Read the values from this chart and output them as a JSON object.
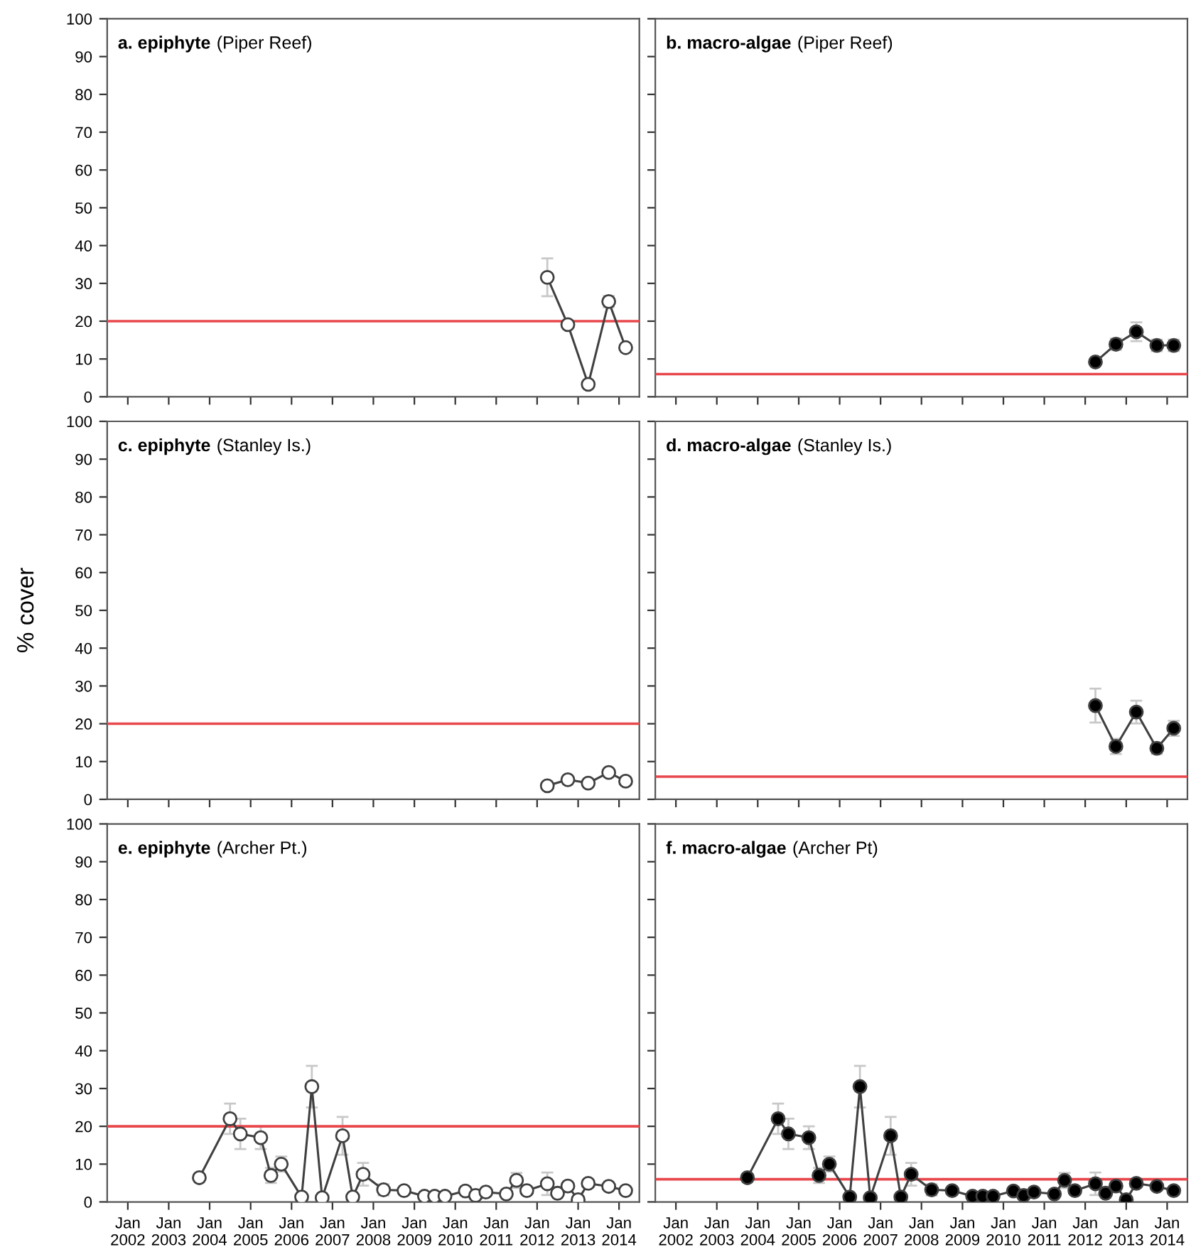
{
  "chart_data": [
    {
      "type": "line",
      "title": "a. epiphyte",
      "subtitle": "(Piper Reef)",
      "marker": "circle",
      "line_style": "solid",
      "grid": false,
      "tick_labels": "y",
      "series": [
        {
          "color": "#ffffff",
          "x": [
            "2012-04",
            "2012-10",
            "2013-04",
            "2013-10",
            "2014-03"
          ],
          "values": [
            31.6,
            19.1,
            3.3,
            25.2,
            13
          ],
          "errors": [
            5,
            null,
            null,
            1.5,
            null
          ]
        }
      ],
      "ref_lines": [
        {
          "axis": "y",
          "value": 20,
          "color": "#e8474c"
        }
      ],
      "xlim": [
        "2001-07",
        "2014-07"
      ],
      "ylim": [
        0,
        100
      ],
      "xticks": [
        {
          "value": "2002-01",
          "label": null
        },
        {
          "value": "2003-01",
          "label": null
        },
        {
          "value": "2004-01",
          "label": null
        },
        {
          "value": "2005-01",
          "label": null
        },
        {
          "value": "2006-01",
          "label": null
        },
        {
          "value": "2007-01",
          "label": null
        },
        {
          "value": "2008-01",
          "label": null
        },
        {
          "value": "2009-01",
          "label": null
        },
        {
          "value": "2010-01",
          "label": null
        },
        {
          "value": "2011-01",
          "label": null
        },
        {
          "value": "2012-01",
          "label": null
        },
        {
          "value": "2013-01",
          "label": null
        },
        {
          "value": "2014-01",
          "label": null
        }
      ],
      "yticks": [
        0,
        10,
        20,
        30,
        40,
        50,
        60,
        70,
        80,
        90,
        100
      ]
    },
    {
      "type": "line",
      "title": "b. macro-algae",
      "subtitle": "(Piper Reef)",
      "marker": "circle",
      "line_style": "solid",
      "grid": false,
      "tick_labels": false,
      "series": [
        {
          "color": "#000000",
          "x": [
            "2012-04",
            "2012-10",
            "2013-04",
            "2013-10",
            "2014-03"
          ],
          "values": [
            9.2,
            13.9,
            17.2,
            13.6,
            13.6
          ],
          "errors": [
            null,
            1.5,
            2.5,
            1.5,
            1.5
          ]
        }
      ],
      "ref_lines": [
        {
          "axis": "y",
          "value": 6,
          "color": "#e8474c"
        }
      ],
      "xlim": [
        "2001-07",
        "2014-07"
      ],
      "ylim": [
        0,
        100
      ],
      "xticks": [
        {
          "value": "2002-01",
          "label": null
        },
        {
          "value": "2003-01",
          "label": null
        },
        {
          "value": "2004-01",
          "label": null
        },
        {
          "value": "2005-01",
          "label": null
        },
        {
          "value": "2006-01",
          "label": null
        },
        {
          "value": "2007-01",
          "label": null
        },
        {
          "value": "2008-01",
          "label": null
        },
        {
          "value": "2009-01",
          "label": null
        },
        {
          "value": "2010-01",
          "label": null
        },
        {
          "value": "2011-01",
          "label": null
        },
        {
          "value": "2012-01",
          "label": null
        },
        {
          "value": "2013-01",
          "label": null
        },
        {
          "value": "2014-01",
          "label": null
        }
      ],
      "yticks": [
        {
          "value": 0,
          "label": null
        },
        {
          "value": 10,
          "label": null
        },
        {
          "value": 20,
          "label": null
        },
        {
          "value": 30,
          "label": null
        },
        {
          "value": 40,
          "label": null
        },
        {
          "value": 50,
          "label": null
        },
        {
          "value": 60,
          "label": null
        },
        {
          "value": 70,
          "label": null
        },
        {
          "value": 80,
          "label": null
        },
        {
          "value": 90,
          "label": null
        },
        {
          "value": 100,
          "label": null
        }
      ]
    },
    {
      "type": "line",
      "title": "c. epiphyte",
      "subtitle": "(Stanley Is.)",
      "ylabel": "% cover",
      "marker": "circle",
      "line_style": "solid",
      "grid": false,
      "tick_labels": "y",
      "series": [
        {
          "color": "#ffffff",
          "x": [
            "2012-04",
            "2012-10",
            "2013-04",
            "2013-10",
            "2014-03"
          ],
          "values": [
            3.6,
            5.2,
            4.3,
            7.1,
            4.8
          ]
        }
      ],
      "ref_lines": [
        {
          "axis": "y",
          "value": 20,
          "color": "#e8474c"
        }
      ],
      "xlim": [
        "2001-07",
        "2014-07"
      ],
      "ylim": [
        0,
        100
      ],
      "xticks": [
        {
          "value": "2002-01",
          "label": null
        },
        {
          "value": "2003-01",
          "label": null
        },
        {
          "value": "2004-01",
          "label": null
        },
        {
          "value": "2005-01",
          "label": null
        },
        {
          "value": "2006-01",
          "label": null
        },
        {
          "value": "2007-01",
          "label": null
        },
        {
          "value": "2008-01",
          "label": null
        },
        {
          "value": "2009-01",
          "label": null
        },
        {
          "value": "2010-01",
          "label": null
        },
        {
          "value": "2011-01",
          "label": null
        },
        {
          "value": "2012-01",
          "label": null
        },
        {
          "value": "2013-01",
          "label": null
        },
        {
          "value": "2014-01",
          "label": null
        }
      ],
      "yticks": [
        0,
        10,
        20,
        30,
        40,
        50,
        60,
        70,
        80,
        90,
        100
      ]
    },
    {
      "type": "line",
      "title": "d. macro-algae",
      "subtitle": "(Stanley Is.)",
      "marker": "circle",
      "line_style": "solid",
      "grid": false,
      "tick_labels": false,
      "series": [
        {
          "color": "#000000",
          "x": [
            "2012-04",
            "2012-10",
            "2013-04",
            "2013-10",
            "2014-03"
          ],
          "values": [
            24.8,
            14,
            23.1,
            13.5,
            18.8
          ],
          "errors": [
            4.5,
            2,
            3,
            1.5,
            2
          ]
        }
      ],
      "ref_lines": [
        {
          "axis": "y",
          "value": 6,
          "color": "#e8474c"
        }
      ],
      "xlim": [
        "2001-07",
        "2014-07"
      ],
      "ylim": [
        0,
        100
      ],
      "xticks": [
        {
          "value": "2002-01",
          "label": null
        },
        {
          "value": "2003-01",
          "label": null
        },
        {
          "value": "2004-01",
          "label": null
        },
        {
          "value": "2005-01",
          "label": null
        },
        {
          "value": "2006-01",
          "label": null
        },
        {
          "value": "2007-01",
          "label": null
        },
        {
          "value": "2008-01",
          "label": null
        },
        {
          "value": "2009-01",
          "label": null
        },
        {
          "value": "2010-01",
          "label": null
        },
        {
          "value": "2011-01",
          "label": null
        },
        {
          "value": "2012-01",
          "label": null
        },
        {
          "value": "2013-01",
          "label": null
        },
        {
          "value": "2014-01",
          "label": null
        }
      ],
      "yticks": [
        {
          "value": 0,
          "label": null
        },
        {
          "value": 10,
          "label": null
        },
        {
          "value": 20,
          "label": null
        },
        {
          "value": 30,
          "label": null
        },
        {
          "value": 40,
          "label": null
        },
        {
          "value": 50,
          "label": null
        },
        {
          "value": 60,
          "label": null
        },
        {
          "value": 70,
          "label": null
        },
        {
          "value": 80,
          "label": null
        },
        {
          "value": 90,
          "label": null
        },
        {
          "value": 100,
          "label": null
        }
      ]
    },
    {
      "type": "line",
      "title": "e. epiphyte",
      "subtitle": "(Archer Pt.)",
      "marker": "circle",
      "line_style": "solid",
      "grid": false,
      "series": [
        {
          "color": "#ffffff",
          "x": [
            "2003-10",
            "2004-07",
            "2004-10",
            "2005-04",
            "2005-07",
            "2005-10",
            "2006-04",
            "2006-07",
            "2006-10",
            "2007-04",
            "2007-07",
            "2007-10",
            "2008-04",
            "2008-10",
            "2009-04",
            "2009-07",
            "2009-10",
            "2010-04",
            "2010-07",
            "2010-10",
            "2011-04",
            "2011-07",
            "2011-10",
            "2012-04",
            "2012-07",
            "2012-10",
            "2013-01",
            "2013-04",
            "2013-10",
            "2014-03"
          ],
          "values": [
            6.4,
            22,
            18,
            17,
            7,
            10,
            1.3,
            30.5,
            1.1,
            17.5,
            1.3,
            7.3,
            3.2,
            3,
            1.5,
            1.5,
            1.5,
            2.9,
            1.7,
            2.6,
            2.1,
            5.7,
            3,
            4.8,
            2.3,
            4.2,
            0.6,
            4.9,
            4.1,
            3
          ],
          "errors": [
            1,
            4,
            4,
            3,
            2,
            2,
            null,
            5.5,
            null,
            5,
            null,
            3,
            1.5,
            null,
            null,
            null,
            null,
            1,
            null,
            null,
            null,
            2,
            null,
            3,
            null,
            null,
            null,
            null,
            null,
            null
          ]
        }
      ],
      "ref_lines": [
        {
          "axis": "y",
          "value": 20,
          "color": "#e8474c"
        }
      ],
      "xlim": [
        "2001-07",
        "2014-07"
      ],
      "ylim": [
        0,
        100
      ],
      "xticks": [
        {
          "value": "2002-01",
          "label": "Jan\n2002"
        },
        {
          "value": "2003-01",
          "label": "Jan\n2003"
        },
        {
          "value": "2004-01",
          "label": "Jan\n2004"
        },
        {
          "value": "2005-01",
          "label": "Jan\n2005"
        },
        {
          "value": "2006-01",
          "label": "Jan\n2006"
        },
        {
          "value": "2007-01",
          "label": "Jan\n2007"
        },
        {
          "value": "2008-01",
          "label": "Jan\n2008"
        },
        {
          "value": "2009-01",
          "label": "Jan\n2009"
        },
        {
          "value": "2010-01",
          "label": "Jan\n2010"
        },
        {
          "value": "2011-01",
          "label": "Jan\n2011"
        },
        {
          "value": "2012-01",
          "label": "Jan\n2012"
        },
        {
          "value": "2013-01",
          "label": "Jan\n2013"
        },
        {
          "value": "2014-01",
          "label": "Jan\n2014"
        }
      ],
      "yticks": [
        0,
        10,
        20,
        30,
        40,
        50,
        60,
        70,
        80,
        90,
        100
      ]
    },
    {
      "type": "line",
      "title": "f. macro-algae",
      "subtitle": "(Archer Pt)",
      "marker": "circle",
      "line_style": "solid",
      "grid": false,
      "tick_labels": "x",
      "series": [
        {
          "color": "#000000",
          "x": [
            "2003-10",
            "2004-07",
            "2004-10",
            "2005-04",
            "2005-07",
            "2005-10",
            "2006-04",
            "2006-07",
            "2006-10",
            "2007-04",
            "2007-07",
            "2007-10",
            "2008-04",
            "2008-10",
            "2009-04",
            "2009-07",
            "2009-10",
            "2010-04",
            "2010-07",
            "2010-10",
            "2011-04",
            "2011-07",
            "2011-10",
            "2012-04",
            "2012-07",
            "2012-10",
            "2013-01",
            "2013-04",
            "2013-10",
            "2014-03"
          ],
          "values": [
            6.4,
            22,
            18,
            17,
            7,
            10,
            1.3,
            30.5,
            1.1,
            17.5,
            1.3,
            7.3,
            3.2,
            3,
            1.5,
            1.5,
            1.5,
            2.9,
            1.7,
            2.6,
            2.1,
            5.7,
            3,
            4.8,
            2.3,
            4.2,
            0.6,
            4.9,
            4.1,
            3
          ],
          "errors": [
            1,
            4,
            4,
            3,
            2,
            2,
            null,
            5.5,
            null,
            5,
            null,
            3,
            1.5,
            null,
            null,
            null,
            null,
            1,
            null,
            null,
            null,
            2,
            null,
            3,
            null,
            null,
            null,
            null,
            null,
            null
          ]
        }
      ],
      "ref_lines": [
        {
          "axis": "y",
          "value": 6,
          "color": "#e8474c"
        }
      ],
      "xlim": [
        "2001-07",
        "2014-07"
      ],
      "ylim": [
        0,
        100
      ],
      "xticks": [
        {
          "value": "2002-01",
          "label": "Jan\n2002"
        },
        {
          "value": "2003-01",
          "label": "Jan\n2003"
        },
        {
          "value": "2004-01",
          "label": "Jan\n2004"
        },
        {
          "value": "2005-01",
          "label": "Jan\n2005"
        },
        {
          "value": "2006-01",
          "label": "Jan\n2006"
        },
        {
          "value": "2007-01",
          "label": "Jan\n2007"
        },
        {
          "value": "2008-01",
          "label": "Jan\n2008"
        },
        {
          "value": "2009-01",
          "label": "Jan\n2009"
        },
        {
          "value": "2010-01",
          "label": "Jan\n2010"
        },
        {
          "value": "2011-01",
          "label": "Jan\n2011"
        },
        {
          "value": "2012-01",
          "label": "Jan\n2012"
        },
        {
          "value": "2013-01",
          "label": "Jan\n2013"
        },
        {
          "value": "2014-01",
          "label": "Jan\n2014"
        }
      ],
      "yticks": [
        {
          "value": 0,
          "label": null
        },
        {
          "value": 10,
          "label": null
        },
        {
          "value": 20,
          "label": null
        },
        {
          "value": 30,
          "label": null
        },
        {
          "value": 40,
          "label": null
        },
        {
          "value": 50,
          "label": null
        },
        {
          "value": 60,
          "label": null
        },
        {
          "value": 70,
          "label": null
        },
        {
          "value": 80,
          "label": null
        },
        {
          "value": 90,
          "label": null
        },
        {
          "value": 100,
          "label": null
        }
      ]
    }
  ]
}
